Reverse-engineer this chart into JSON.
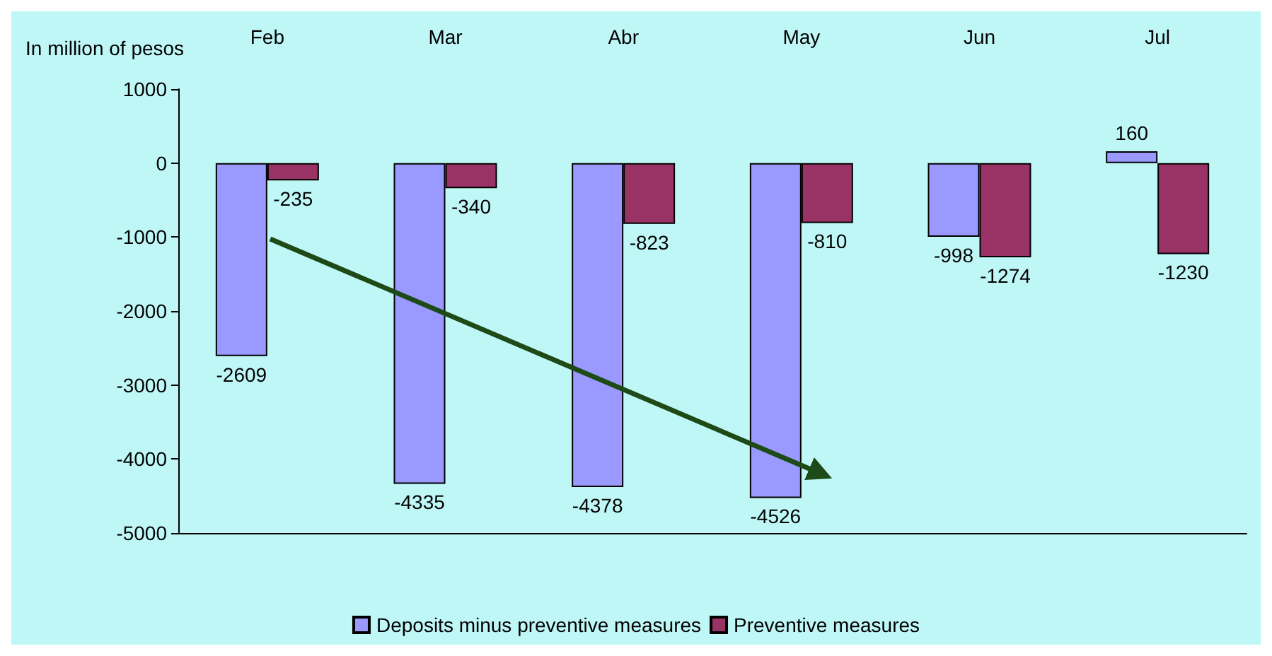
{
  "chart_data": {
    "type": "bar",
    "ylabel": "In million of pesos",
    "categories": [
      "Feb",
      "Mar",
      "Abr",
      "May",
      "Jun",
      "Jul"
    ],
    "series": [
      {
        "name": "Deposits minus preventive measures",
        "color": "#9999ff",
        "values": [
          -2609,
          -4335,
          -4378,
          -4526,
          -998,
          160
        ]
      },
      {
        "name": "Preventive measures",
        "color": "#993366",
        "values": [
          -235,
          -340,
          -823,
          -810,
          -1274,
          -1230
        ]
      }
    ],
    "ylim": [
      -5000,
      1000
    ],
    "yticks": [
      1000,
      0,
      -1000,
      -2000,
      -3000,
      -4000,
      -5000
    ],
    "grid": false,
    "legend": "bottom",
    "data_labels": true
  }
}
